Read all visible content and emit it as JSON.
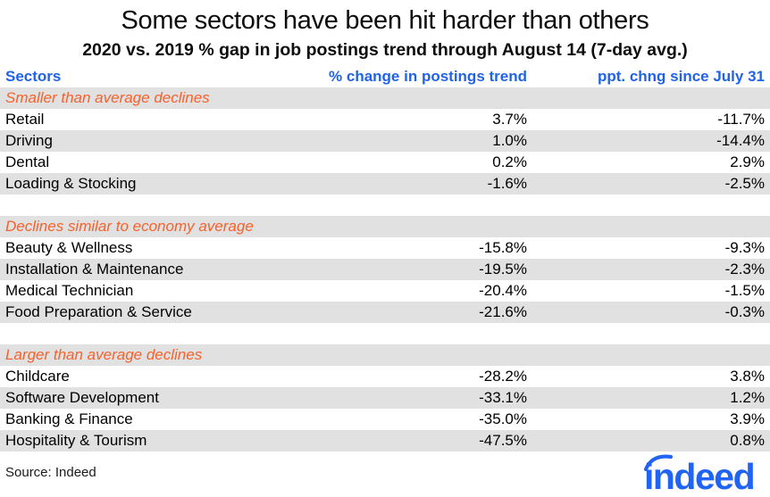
{
  "title": "Some sectors have been hit harder than others",
  "subtitle": "2020 vs. 2019 % gap in job postings trend through August 14 (7-day avg.)",
  "table": {
    "columns": [
      "Sectors",
      "% change in postings trend",
      "ppt. chng since July 31"
    ],
    "groups": [
      {
        "label": "Smaller than average declines",
        "rows": [
          {
            "sector": "Retail",
            "change": "3.7%",
            "ppt": "-11.7%"
          },
          {
            "sector": "Driving",
            "change": "1.0%",
            "ppt": "-14.4%"
          },
          {
            "sector": "Dental",
            "change": "0.2%",
            "ppt": "2.9%"
          },
          {
            "sector": "Loading & Stocking",
            "change": "-1.6%",
            "ppt": "-2.5%"
          }
        ]
      },
      {
        "label": "Declines similar to economy average",
        "rows": [
          {
            "sector": "Beauty & Wellness",
            "change": "-15.8%",
            "ppt": "-9.3%"
          },
          {
            "sector": "Installation & Maintenance",
            "change": "-19.5%",
            "ppt": "-2.3%"
          },
          {
            "sector": "Medical Technician",
            "change": "-20.4%",
            "ppt": "-1.5%"
          },
          {
            "sector": "Food Preparation & Service",
            "change": "-21.6%",
            "ppt": "-0.3%"
          }
        ]
      },
      {
        "label": "Larger than average declines",
        "rows": [
          {
            "sector": "Childcare",
            "change": "-28.2%",
            "ppt": "3.8%"
          },
          {
            "sector": "Software Development",
            "change": "-33.1%",
            "ppt": "1.2%"
          },
          {
            "sector": "Banking & Finance",
            "change": "-35.0%",
            "ppt": "3.9%"
          },
          {
            "sector": "Hospitality & Tourism",
            "change": "-47.5%",
            "ppt": "0.8%"
          }
        ]
      }
    ]
  },
  "source": "Source: Indeed",
  "logo_text": "indeed",
  "colors": {
    "header_blue": "#2163e8",
    "group_orange": "#f8612b",
    "row_gray": "#e1e1e1",
    "logo_blue": "#2164f3",
    "text_black": "#0d0d0d"
  },
  "chart_data": {
    "type": "table",
    "title": "Some sectors have been hit harder than others",
    "subtitle": "2020 vs. 2019 % gap in job postings trend through August 14 (7-day avg.)",
    "columns": [
      "Sectors",
      "% change in postings trend",
      "ppt. chng since July 31"
    ],
    "groups": [
      {
        "label": "Smaller than average declines",
        "rows": [
          {
            "sector": "Retail",
            "pct_change": 3.7,
            "ppt_chng_since_july31": -11.7
          },
          {
            "sector": "Driving",
            "pct_change": 1.0,
            "ppt_chng_since_july31": -14.4
          },
          {
            "sector": "Dental",
            "pct_change": 0.2,
            "ppt_chng_since_july31": 2.9
          },
          {
            "sector": "Loading & Stocking",
            "pct_change": -1.6,
            "ppt_chng_since_july31": -2.5
          }
        ]
      },
      {
        "label": "Declines similar to economy average",
        "rows": [
          {
            "sector": "Beauty & Wellness",
            "pct_change": -15.8,
            "ppt_chng_since_july31": -9.3
          },
          {
            "sector": "Installation & Maintenance",
            "pct_change": -19.5,
            "ppt_chng_since_july31": -2.3
          },
          {
            "sector": "Medical Technician",
            "pct_change": -20.4,
            "ppt_chng_since_july31": -1.5
          },
          {
            "sector": "Food Preparation & Service",
            "pct_change": -21.6,
            "ppt_chng_since_july31": -0.3
          }
        ]
      },
      {
        "label": "Larger than average declines",
        "rows": [
          {
            "sector": "Childcare",
            "pct_change": -28.2,
            "ppt_chng_since_july31": 3.8
          },
          {
            "sector": "Software Development",
            "pct_change": -33.1,
            "ppt_chng_since_july31": 1.2
          },
          {
            "sector": "Banking & Finance",
            "pct_change": -35.0,
            "ppt_chng_since_july31": 3.9
          },
          {
            "sector": "Hospitality & Tourism",
            "pct_change": -47.5,
            "ppt_chng_since_july31": 0.8
          }
        ]
      }
    ],
    "source": "Source: Indeed"
  }
}
